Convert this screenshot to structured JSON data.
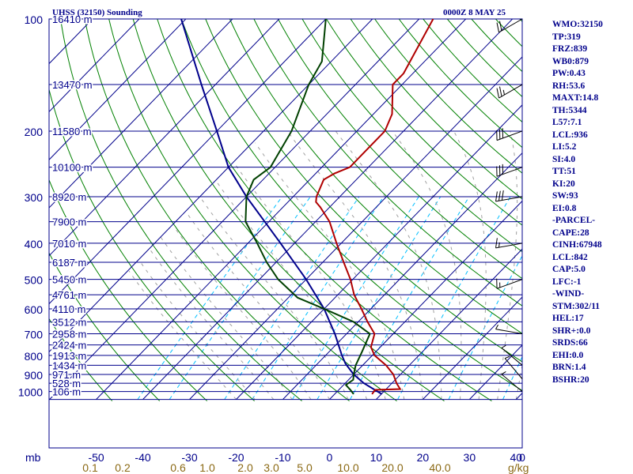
{
  "header": {
    "station": "UHSS (32150) Sounding",
    "time": "0000Z  8 MAY 25"
  },
  "indices": [
    "WMO:32150",
    "TP:319",
    "FRZ:839",
    "WB0:879",
    "PW:0.43",
    "RH:53.6",
    "MAXT:14.8",
    "TH:5344",
    "L57:7.1",
    "LCL:936",
    "LI:5.2",
    "SI:4.0",
    "TT:51",
    "KI:20",
    "SW:93",
    "EI:0.8",
    "-PARCEL-",
    "CAPE:28",
    "CINH:67948",
    "LCL:842",
    "CAP:5.0",
    "LFC:-1",
    "-WIND-",
    "STM:302/11",
    "HEL:17",
    "SHR+:0.0",
    "SRDS:66",
    "EHI:0.0",
    "BRN:1.4",
    "BSHR:20"
  ],
  "colors": {
    "isobar": "#00008b",
    "isotherm": "#00008b",
    "dry_adiabat": "#008000",
    "moist_adiabat": "#a0a0a0",
    "mixing_ratio": "#00bfff",
    "temperature": "#b00000",
    "dewpoint": "#004000",
    "parcel": "#00008b",
    "axis_text": "#00008b",
    "mixing_label": "#8b6914"
  },
  "chart_data": {
    "type": "skew-t",
    "xlabel": "",
    "ylabel": "mb",
    "pressure_ticks": [
      100,
      200,
      300,
      400,
      500,
      600,
      700,
      800,
      900,
      1000
    ],
    "temperature_ticks": [
      -50,
      -40,
      -30,
      -20,
      -10,
      0,
      10,
      20,
      30,
      40
    ],
    "mixing_ratio_ticks": [
      "0.1",
      "0.2",
      "0.6",
      "1.0",
      "2.0",
      "3.0",
      "5.0",
      "10.0",
      "20.0",
      "40.0"
    ],
    "mixing_ratio_unit": "g/kg",
    "height_labels": [
      {
        "p": 100,
        "h": "16410 m"
      },
      {
        "p": 150,
        "h": "13470 m"
      },
      {
        "p": 200,
        "h": "11580 m"
      },
      {
        "p": 250,
        "h": "10100 m"
      },
      {
        "p": 300,
        "h": "8920 m"
      },
      {
        "p": 350,
        "h": "7900 m"
      },
      {
        "p": 400,
        "h": "7010 m"
      },
      {
        "p": 450,
        "h": "6187 m"
      },
      {
        "p": 500,
        "h": "5450 m"
      },
      {
        "p": 550,
        "h": "4761 m"
      },
      {
        "p": 600,
        "h": "4110 m"
      },
      {
        "p": 650,
        "h": "3512 m"
      },
      {
        "p": 700,
        "h": "2958 m"
      },
      {
        "p": 750,
        "h": "2424 m"
      },
      {
        "p": 800,
        "h": "1913 m"
      },
      {
        "p": 850,
        "h": "1434 m"
      },
      {
        "p": 900,
        "h": "971 m"
      },
      {
        "p": 950,
        "h": "528 m"
      },
      {
        "p": 1000,
        "h": "106 m"
      }
    ],
    "temperature": [
      {
        "p": 1015,
        "t": 8
      },
      {
        "p": 990,
        "t": 7.8
      },
      {
        "p": 985,
        "t": 13
      },
      {
        "p": 950,
        "t": 11
      },
      {
        "p": 900,
        "t": 8.5
      },
      {
        "p": 850,
        "t": 5
      },
      {
        "p": 800,
        "t": 0.5
      },
      {
        "p": 760,
        "t": -2
      },
      {
        "p": 700,
        "t": -4
      },
      {
        "p": 650,
        "t": -8
      },
      {
        "p": 600,
        "t": -12
      },
      {
        "p": 550,
        "t": -16.5
      },
      {
        "p": 500,
        "t": -20.5
      },
      {
        "p": 450,
        "t": -25.5
      },
      {
        "p": 400,
        "t": -31
      },
      {
        "p": 350,
        "t": -37
      },
      {
        "p": 320,
        "t": -42
      },
      {
        "p": 310,
        "t": -44
      },
      {
        "p": 300,
        "t": -45
      },
      {
        "p": 270,
        "t": -47
      },
      {
        "p": 260,
        "t": -46
      },
      {
        "p": 250,
        "t": -44
      },
      {
        "p": 200,
        "t": -44
      },
      {
        "p": 180,
        "t": -46
      },
      {
        "p": 150,
        "t": -52
      },
      {
        "p": 140,
        "t": -52
      },
      {
        "p": 100,
        "t": -57
      }
    ],
    "dewpoint": [
      {
        "p": 1015,
        "t": 4
      },
      {
        "p": 990,
        "t": 2.5
      },
      {
        "p": 960,
        "t": 0.5
      },
      {
        "p": 930,
        "t": 1
      },
      {
        "p": 900,
        "t": 0
      },
      {
        "p": 850,
        "t": -1.5
      },
      {
        "p": 780,
        "t": -3
      },
      {
        "p": 700,
        "t": -5
      },
      {
        "p": 650,
        "t": -11
      },
      {
        "p": 600,
        "t": -20
      },
      {
        "p": 560,
        "t": -28
      },
      {
        "p": 500,
        "t": -36
      },
      {
        "p": 450,
        "t": -42
      },
      {
        "p": 400,
        "t": -48
      },
      {
        "p": 350,
        "t": -55
      },
      {
        "p": 300,
        "t": -60
      },
      {
        "p": 270,
        "t": -62
      },
      {
        "p": 250,
        "t": -61
      },
      {
        "p": 200,
        "t": -64
      },
      {
        "p": 150,
        "t": -70
      },
      {
        "p": 130,
        "t": -72
      },
      {
        "p": 100,
        "t": -80
      }
    ],
    "parcel": [
      {
        "p": 1015,
        "t": 10
      },
      {
        "p": 950,
        "t": 4
      },
      {
        "p": 900,
        "t": 0
      },
      {
        "p": 842,
        "t": -4
      },
      {
        "p": 800,
        "t": -6.5
      },
      {
        "p": 700,
        "t": -12.5
      },
      {
        "p": 600,
        "t": -20
      },
      {
        "p": 500,
        "t": -30
      },
      {
        "p": 400,
        "t": -43
      },
      {
        "p": 300,
        "t": -60
      },
      {
        "p": 250,
        "t": -70
      },
      {
        "p": 200,
        "t": -80
      },
      {
        "p": 150,
        "t": -93
      },
      {
        "p": 100,
        "t": -111
      }
    ],
    "wind_barbs": [
      {
        "p": 1000,
        "dir": 310,
        "speed": 5
      },
      {
        "p": 925,
        "dir": 320,
        "speed": 5
      },
      {
        "p": 850,
        "dir": 310,
        "speed": 5
      },
      {
        "p": 700,
        "dir": 280,
        "speed": 5
      },
      {
        "p": 500,
        "dir": 250,
        "speed": 15
      },
      {
        "p": 400,
        "dir": 260,
        "speed": 15
      },
      {
        "p": 300,
        "dir": 260,
        "speed": 30
      },
      {
        "p": 250,
        "dir": 250,
        "speed": 30
      },
      {
        "p": 200,
        "dir": 250,
        "speed": 30
      },
      {
        "p": 150,
        "dir": 240,
        "speed": 25
      },
      {
        "p": 100,
        "dir": 240,
        "speed": 20
      }
    ]
  }
}
